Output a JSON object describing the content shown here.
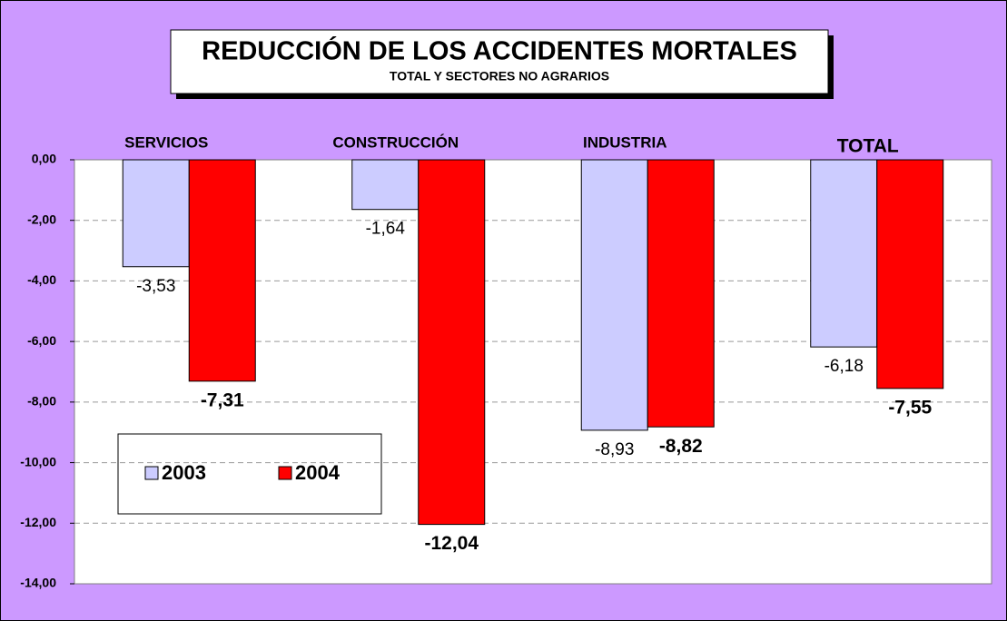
{
  "chart_data": {
    "type": "bar",
    "title": "REDUCCIÓN DE LOS ACCIDENTES MORTALES",
    "subtitle": "TOTAL Y SECTORES NO AGRARIOS",
    "categories": [
      "SERVICIOS",
      "CONSTRUCCIÓN",
      "INDUSTRIA",
      "TOTAL"
    ],
    "series": [
      {
        "name": "2003",
        "color": "#ccccff",
        "values": [
          -3.53,
          -1.64,
          -8.93,
          -6.18
        ],
        "value_labels": [
          "-3,53",
          "-1,64",
          "-8,93",
          "-6,18"
        ]
      },
      {
        "name": "2004",
        "color": "#ff0000",
        "values": [
          -7.31,
          -12.04,
          -8.82,
          -7.55
        ],
        "value_labels": [
          "-7,31",
          "-12,04",
          "-8,82",
          "-7,55"
        ]
      }
    ],
    "ylim": [
      -14,
      0
    ],
    "yticks": [
      {
        "value": 0,
        "label": "0,00"
      },
      {
        "value": -2,
        "label": "-2,00"
      },
      {
        "value": -4,
        "label": "-4,00"
      },
      {
        "value": -6,
        "label": "-6,00"
      },
      {
        "value": -8,
        "label": "-8,00"
      },
      {
        "value": -10,
        "label": "-10,00"
      },
      {
        "value": -12,
        "label": "-12,00"
      },
      {
        "value": -14,
        "label": "-14,00"
      }
    ],
    "grid": true
  }
}
